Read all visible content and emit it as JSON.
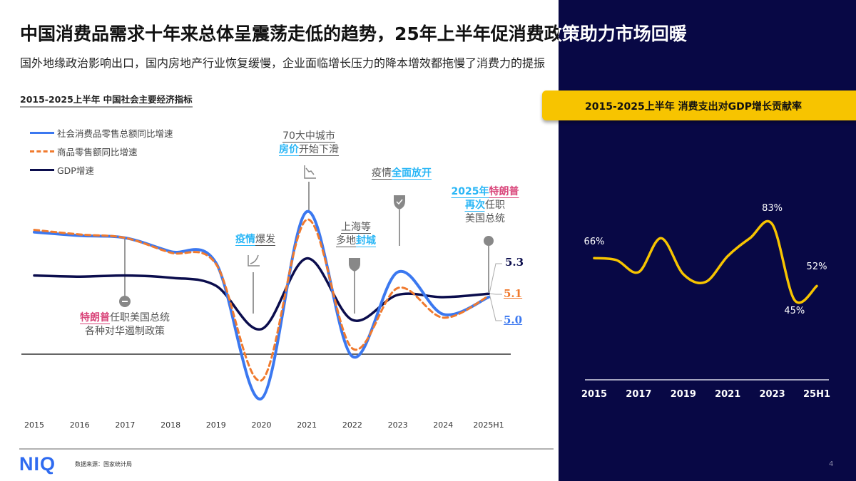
{
  "header": {
    "title": "中国消费品需求十年来总体呈震荡走低的趋势，25年上半年促消费政策助力市场回暖",
    "subtitle": "国外地缘政治影响出口，国内房地产行业恢复缓慢，企业面临增长压力的降本增效都拖慢了消费力的提振"
  },
  "colors": {
    "retail": "#3b78f0",
    "goods": "#f07a2e",
    "gdp": "#0b0d4d",
    "panel": "#080845",
    "accent": "#f7c400",
    "highlight": "#29b6f6",
    "trump": "#d9457a"
  },
  "chart_data": [
    {
      "type": "line",
      "title": "2015-2025上半年 中国社会主要经济指标",
      "categories": [
        "2015",
        "2016",
        "2017",
        "2018",
        "2019",
        "2020",
        "2021",
        "2022",
        "2023",
        "2024",
        "2025H1"
      ],
      "legend_position": "top-left",
      "grid": false,
      "series": [
        {
          "name": "社会消费品零售总额同比增速",
          "style": "solid",
          "values": [
            10.7,
            10.4,
            10.2,
            9.0,
            8.0,
            -3.9,
            12.5,
            -0.2,
            7.2,
            3.5,
            5.0
          ]
        },
        {
          "name": "商品零售额同比增速",
          "style": "dashed",
          "values": [
            10.9,
            10.5,
            10.2,
            8.9,
            7.9,
            -2.3,
            11.8,
            0.5,
            5.8,
            3.2,
            5.1
          ]
        },
        {
          "name": "GDP增速",
          "style": "solid",
          "values": [
            6.9,
            6.8,
            6.9,
            6.7,
            6.0,
            2.2,
            8.4,
            3.0,
            5.2,
            5.0,
            5.3
          ]
        }
      ],
      "end_labels": {
        "gdp": "5.3",
        "goods": "5.1",
        "retail": "5.0"
      }
    },
    {
      "type": "line",
      "title": "2015-2025上半年 消费支出对GDP增长贡献率",
      "categories": [
        "2015",
        "2016",
        "2017",
        "2018",
        "2019",
        "2020",
        "2021",
        "2022",
        "2023",
        "2024",
        "25H1"
      ],
      "tick_labels": [
        "2015",
        "2017",
        "2019",
        "2021",
        "2023",
        "25H1"
      ],
      "values": [
        66,
        65,
        59,
        76,
        58,
        54,
        67,
        76,
        83,
        45,
        52
      ],
      "data_labels": {
        "2015": "66%",
        "2023": "83%",
        "2024": "45%",
        "25H1": "52%"
      },
      "ylim": [
        5,
        95
      ]
    }
  ],
  "annotations": {
    "trump1": {
      "l1a": "特朗普",
      "l1b": "任职美国总统",
      "l2": "各种对华遏制政策"
    },
    "covid": {
      "a": "疫情",
      "b": "爆发"
    },
    "housing": {
      "l1": "70大中城市",
      "l2a": "房价",
      "l2b": "开始下滑"
    },
    "lockdown": {
      "l1": "上海等",
      "l2a": "多地",
      "l2b": "封城"
    },
    "reopen": {
      "a": "疫情",
      "b": "全面放开"
    },
    "trump2": {
      "l1a": "2025年",
      "l1b": "特朗普",
      "l2a": "再次",
      "l2b": "任职",
      "l3": "美国总统"
    }
  },
  "footer": {
    "logo": "NIQ",
    "source": "数据来源：国家统计局",
    "page": "4"
  }
}
